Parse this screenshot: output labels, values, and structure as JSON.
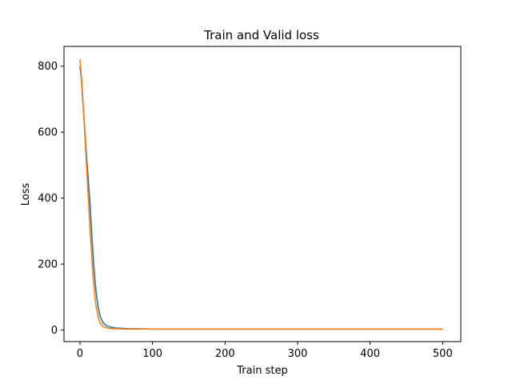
{
  "chart_data": {
    "type": "line",
    "title": "Train and Valid loss",
    "xlabel": "Train step",
    "ylabel": "Loss",
    "xlim": [
      -22,
      525
    ],
    "ylim": [
      -35,
      860
    ],
    "xticks": [
      0,
      100,
      200,
      300,
      400,
      500
    ],
    "yticks": [
      0,
      200,
      400,
      600,
      800
    ],
    "grid": false,
    "series": [
      {
        "color": "#1f77b4",
        "x": [
          0,
          2,
          4,
          6,
          8,
          10,
          12,
          14,
          16,
          18,
          20,
          22,
          25,
          28,
          32,
          36,
          40,
          45,
          50,
          60,
          70,
          80,
          100,
          150,
          200,
          300,
          400,
          500
        ],
        "y": [
          800,
          760,
          690,
          630,
          560,
          500,
          440,
          380,
          300,
          230,
          170,
          120,
          70,
          40,
          22,
          14,
          10,
          8,
          6,
          5,
          4,
          4,
          3,
          3,
          3,
          3,
          3,
          3
        ]
      },
      {
        "color": "#ff7f0e",
        "x": [
          0,
          2,
          4,
          6,
          8,
          10,
          12,
          14,
          16,
          18,
          20,
          22,
          25,
          28,
          32,
          36,
          40,
          45,
          50,
          60,
          70,
          80,
          100,
          150,
          200,
          300,
          400,
          500
        ],
        "y": [
          820,
          770,
          700,
          620,
          540,
          460,
          380,
          300,
          230,
          165,
          115,
          75,
          40,
          20,
          10,
          7,
          5,
          4,
          4,
          3,
          3,
          3,
          3,
          3,
          3,
          3,
          3,
          3
        ]
      }
    ]
  }
}
